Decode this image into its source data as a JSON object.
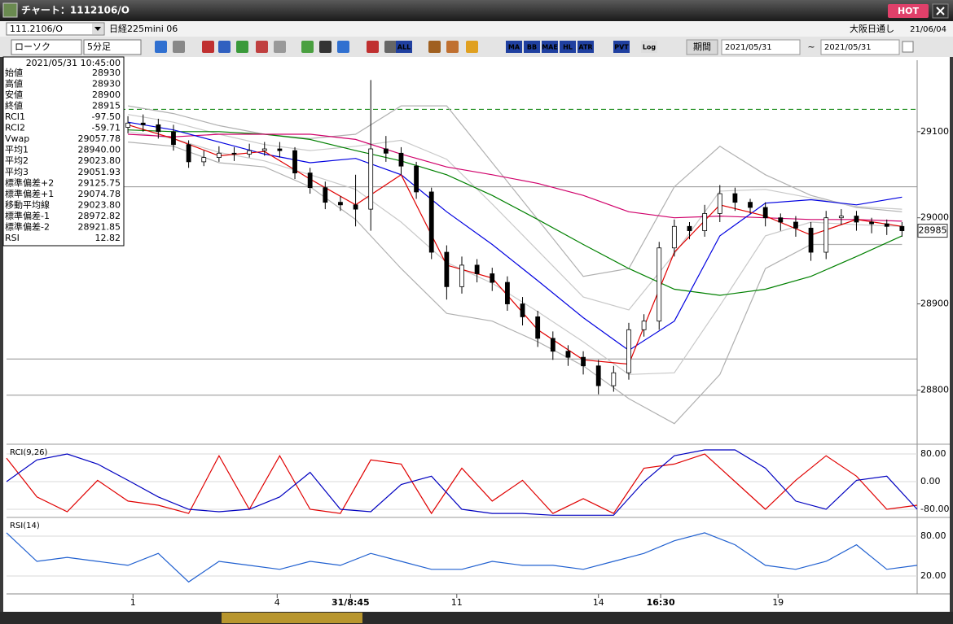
{
  "window": {
    "title": "チャート：1112106/O",
    "hot": "HOT"
  },
  "toolbar": {
    "symbol": "111.2106/O",
    "name": "日経225mini 06",
    "exchange": "大阪日通し",
    "date": "21/06/04",
    "chart_type": "ローソク",
    "interval": "5分足",
    "buttons": [
      "ALL",
      "MA",
      "BB",
      "MAE",
      "HL",
      "ATR",
      "PVT",
      "Log"
    ],
    "period_label": "期間",
    "from": "2021/05/31",
    "tilde": "~",
    "to": "2021/05/31"
  },
  "info_panel": {
    "datetime": "2021/05/31 10:45:00",
    "rows": [
      {
        "label": "始値",
        "value": "28930",
        "color": "#000000"
      },
      {
        "label": "高値",
        "value": "28930",
        "color": "#000000"
      },
      {
        "label": "安値",
        "value": "28900",
        "color": "#000000"
      },
      {
        "label": "終値",
        "value": "28915",
        "color": "#000000"
      },
      {
        "label": "RCI1",
        "value": "-97.50",
        "color": "#d00000"
      },
      {
        "label": "RCI2",
        "value": "-59.71",
        "color": "#000080"
      },
      {
        "label": "Vwap",
        "value": "29057.78",
        "color": "#d0006a"
      },
      {
        "label": "平均1",
        "value": "28940.00",
        "color": "#d00000"
      },
      {
        "label": "平均2",
        "value": "29023.80",
        "color": "#000080"
      },
      {
        "label": "平均3",
        "value": "29051.93",
        "color": "#008000"
      },
      {
        "label": "標準偏差+2",
        "value": "29125.75",
        "color": "#909090"
      },
      {
        "label": "標準偏差+1",
        "value": "29074.78",
        "color": "#909090"
      },
      {
        "label": "移動平均線",
        "value": "29023.80",
        "color": "#0000c0"
      },
      {
        "label": "標準偏差-1",
        "value": "28972.82",
        "color": "#909090"
      },
      {
        "label": "標準偏差-2",
        "value": "28921.85",
        "color": "#909090"
      },
      {
        "label": "RSI",
        "value": "12.82",
        "color": "#2060d0"
      }
    ]
  },
  "chart_data": [
    {
      "type": "candlestick",
      "xlim": [
        0,
        180
      ],
      "ylim": [
        28738,
        29183
      ],
      "yticks": [
        28800,
        28900,
        29000,
        29100
      ],
      "xticks": [
        {
          "value": 25,
          "label": "1"
        },
        {
          "value": 53.5,
          "label": "4"
        },
        {
          "value": 68,
          "label": "31/8:45"
        },
        {
          "value": 89,
          "label": "11"
        },
        {
          "value": 117,
          "label": "14"
        },
        {
          "value": 129.3,
          "label": "16:30"
        },
        {
          "value": 152.5,
          "label": "19"
        }
      ],
      "up_color": "#ffffff",
      "down_color": "#000000",
      "x": [
        24,
        27,
        30,
        33,
        36,
        39,
        42,
        45,
        48,
        51,
        54,
        57,
        60,
        63,
        66,
        69,
        72,
        75,
        78,
        81,
        84,
        87,
        90,
        93,
        96,
        99,
        102,
        105,
        108,
        111,
        114,
        117,
        120,
        123,
        126,
        129,
        132,
        135,
        138,
        141,
        144,
        147,
        150,
        153,
        156,
        159,
        162,
        165,
        168,
        171,
        174,
        177
      ],
      "open": [
        29105,
        29110,
        29108,
        29100,
        29085,
        29065,
        29070,
        29075,
        29074,
        29078,
        29080,
        29078,
        29052,
        29035,
        29018,
        29015,
        29010,
        29080,
        29075,
        29060,
        29030,
        28960,
        28920,
        28945,
        28935,
        28925,
        28900,
        28885,
        28860,
        28845,
        28838,
        28828,
        28805,
        28820,
        28870,
        28880,
        28965,
        28990,
        28985,
        29005,
        29028,
        29018,
        29012,
        29000,
        28995,
        28988,
        28960,
        29000,
        29002,
        28995,
        28993,
        28990
      ],
      "high": [
        29118,
        29120,
        29115,
        29108,
        29090,
        29078,
        29083,
        29082,
        29086,
        29088,
        29088,
        29082,
        29058,
        29042,
        29025,
        29050,
        29160,
        29095,
        29082,
        29065,
        29035,
        28968,
        28955,
        28952,
        28942,
        28932,
        28908,
        28892,
        28868,
        28852,
        28845,
        28835,
        28828,
        28878,
        28888,
        28972,
        28998,
        28995,
        29015,
        29038,
        29035,
        29022,
        29018,
        29005,
        29002,
        28995,
        29008,
        29010,
        29008,
        29000,
        28998,
        28995
      ],
      "low": [
        29098,
        29100,
        29092,
        29078,
        29058,
        29060,
        29065,
        29066,
        29070,
        29072,
        29070,
        29045,
        29028,
        29010,
        29008,
        28990,
        28985,
        29065,
        29050,
        29022,
        28952,
        28905,
        28912,
        28925,
        28915,
        28892,
        28875,
        28850,
        28835,
        28828,
        28818,
        28795,
        28798,
        28812,
        28862,
        28870,
        28955,
        28975,
        28978,
        28995,
        29008,
        29005,
        28990,
        28985,
        28978,
        28950,
        28952,
        28992,
        28985,
        28982,
        28980,
        28978
      ],
      "close": [
        29110,
        29108,
        29100,
        29085,
        29065,
        29070,
        29075,
        29074,
        29078,
        29080,
        29078,
        29052,
        29035,
        29018,
        29015,
        29010,
        29080,
        29075,
        29060,
        29030,
        28960,
        28920,
        28945,
        28935,
        28925,
        28900,
        28885,
        28860,
        28845,
        28838,
        28828,
        28805,
        28820,
        28870,
        28880,
        28965,
        28990,
        28985,
        29005,
        29028,
        29018,
        29012,
        29000,
        28995,
        28988,
        28960,
        29000,
        29002,
        28995,
        28993,
        28990,
        28985
      ],
      "overlays": {
        "x": [
          24,
          33,
          42,
          51,
          60,
          69,
          78,
          87,
          96,
          105,
          114,
          123,
          132,
          141,
          150,
          159,
          168,
          177
        ],
        "series": [
          {
            "color": "#b0b0b0",
            "values": [
              29130,
              29121,
              29107,
              29097,
              29092,
              29097,
              29130,
              29130,
              29064,
              28998,
              28932,
              28941,
              29036,
              29083,
              29050,
              29026,
              29012,
              29007
            ]
          },
          {
            "color": "#c8c8c8",
            "values": [
              29120,
              29111,
              29097,
              29085,
              29078,
              29083,
              29090,
              29068,
              29016,
              28962,
              28908,
              28893,
              28958,
              29031,
              29033,
              29023,
              29013,
              29010
            ]
          },
          {
            "color": "#c8c8c8",
            "values": [
              29100,
              29092,
              29076,
              29066,
              29050,
              29033,
              28995,
              28948,
              28924,
              28891,
              28856,
              28818,
              28820,
              28898,
              28979,
              28995,
              28992,
              28990
            ]
          },
          {
            "color": "#b0b0b0",
            "values": [
              29088,
              29083,
              29064,
              29059,
              29036,
              28998,
              28941,
              28889,
              28880,
              28856,
              28828,
              28790,
              28761,
              28818,
              28941,
              28969,
              28969,
              28969
            ]
          },
          {
            "color": "#008000",
            "values": [
              29102,
              29100,
              29100,
              29097,
              29091,
              29078,
              29066,
              29050,
              29026,
              28998,
              28969,
              28941,
              28917,
              28910,
              28917,
              28932,
              28955,
              28979
            ]
          },
          {
            "color": "#d0006a",
            "values": [
              29097,
              29094,
              29097,
              29097,
              29097,
              29091,
              29074,
              29059,
              29050,
              29040,
              29026,
              29007,
              29000,
              29002,
              29000,
              28998,
              28998,
              28996
            ]
          },
          {
            "color": "#0000e0",
            "values": [
              29111,
              29102,
              29088,
              29074,
              29064,
              29069,
              29050,
              29007,
              28969,
              28927,
              28884,
              28846,
              28880,
              28979,
              29017,
              29021,
              29015,
              29024
            ]
          },
          {
            "color": "#e00000",
            "values": [
              29108,
              29092,
              29072,
              29077,
              29045,
              29015,
              29050,
              28945,
              28930,
              28870,
              28835,
              28830,
              28960,
              29015,
              29002,
              28980,
              28998,
              28990
            ]
          }
        ]
      },
      "hlines": [
        {
          "value": 29126,
          "color": "#008000",
          "dash": true
        },
        {
          "value": 29036,
          "color": "#909090",
          "dash": false
        },
        {
          "value": 28836,
          "color": "#909090",
          "dash": false
        },
        {
          "value": 28794,
          "color": "#909090",
          "dash": false
        }
      ],
      "price_tag": 28985
    },
    {
      "type": "line",
      "label": "RCI(9,26)",
      "xlim": [
        0,
        180
      ],
      "ylim": [
        -94,
        106
      ],
      "grid": true,
      "yticks": [
        {
          "value": 80,
          "label": "80.00"
        },
        {
          "value": 0,
          "label": "0.00"
        },
        {
          "value": -80,
          "label": "-80.00"
        }
      ],
      "x": [
        0,
        6,
        12,
        18,
        24,
        30,
        36,
        42,
        48,
        54,
        60,
        66,
        72,
        78,
        84,
        90,
        96,
        102,
        108,
        114,
        120,
        126,
        132,
        138,
        144,
        150,
        156,
        162,
        168,
        174,
        180
      ],
      "series": [
        {
          "color": "#e00000",
          "values": [
            68,
            -44,
            -87,
            4,
            -56,
            -68,
            -92,
            75,
            -80,
            75,
            -80,
            -92,
            63,
            51,
            -92,
            39,
            -56,
            4,
            -92,
            -49,
            -92,
            39,
            51,
            80,
            0,
            -80,
            4,
            75,
            16,
            -80,
            -68
          ]
        },
        {
          "color": "#0000c0",
          "values": [
            0,
            63,
            80,
            51,
            4,
            -44,
            -80,
            -87,
            -80,
            -44,
            27,
            -80,
            -87,
            -8,
            16,
            -80,
            -92,
            -92,
            -97,
            -97,
            -97,
            0,
            75,
            92,
            92,
            39,
            -56,
            -80,
            4,
            16,
            -80
          ]
        }
      ]
    },
    {
      "type": "line",
      "label": "RSI(14)",
      "xlim": [
        0,
        180
      ],
      "ylim": [
        -7,
        107
      ],
      "grid": true,
      "yticks": [
        {
          "value": 80,
          "label": "80.00"
        },
        {
          "value": 20,
          "label": "20.00"
        }
      ],
      "x": [
        0,
        6,
        12,
        18,
        24,
        30,
        36,
        42,
        48,
        54,
        60,
        66,
        72,
        78,
        84,
        90,
        96,
        102,
        108,
        114,
        120,
        126,
        132,
        138,
        144,
        150,
        156,
        162,
        168,
        174,
        180
      ],
      "series": [
        {
          "color": "#2060d0",
          "values": [
            85,
            42,
            48,
            42,
            36,
            54,
            11,
            42,
            36,
            30,
            42,
            36,
            54,
            42,
            30,
            30,
            42,
            36,
            36,
            30,
            42,
            54,
            73,
            85,
            67,
            36,
            30,
            42,
            67,
            30,
            36
          ]
        }
      ]
    }
  ]
}
